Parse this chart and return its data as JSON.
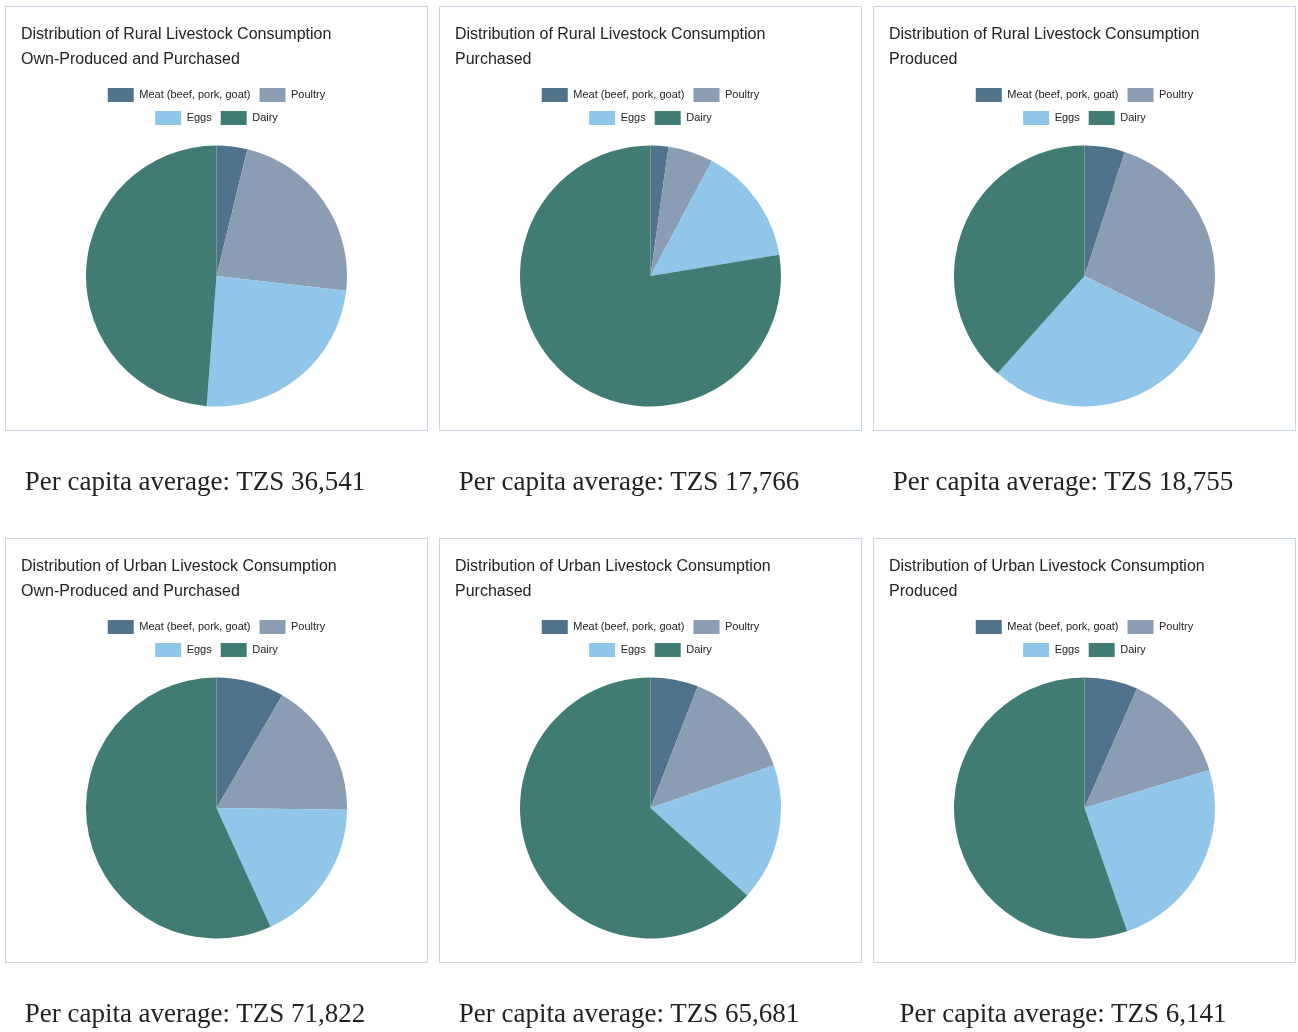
{
  "chart_data": [
    {
      "type": "pie",
      "title": "Distribution of Rural Livestock Consumption",
      "subtitle": "Own-Produced and Purchased",
      "categories": [
        "Meat (beef, pork, goat)",
        "Poultry",
        "Eggs",
        "Dairy"
      ],
      "values": [
        3.8,
        23,
        24.4,
        48.8
      ],
      "colors": [
        "#50728a",
        "#8a9db3",
        "#8fc6ea",
        "#417c74"
      ],
      "legend": "top",
      "annotations": [
        "Per capita average: TZS 36,541"
      ]
    },
    {
      "type": "pie",
      "title": "Distribution of Rural Livestock Consumption",
      "subtitle": "Purchased",
      "categories": [
        "Meat (beef, pork, goat)",
        "Poultry",
        "Eggs",
        "Dairy"
      ],
      "values": [
        2.2,
        5.6,
        14.6,
        77.6
      ],
      "colors": [
        "#50728a",
        "#8a9db3",
        "#8fc6ea",
        "#417c74"
      ],
      "legend": "top",
      "annotations": [
        "Per capita average: TZS 17,766"
      ]
    },
    {
      "type": "pie",
      "title": "Distribution of Rural Livestock Consumption",
      "subtitle": "Produced",
      "categories": [
        "Meat (beef, pork, goat)",
        "Poultry",
        "Eggs",
        "Dairy"
      ],
      "values": [
        5,
        27.3,
        29.3,
        38.4
      ],
      "colors": [
        "#50728a",
        "#8a9db3",
        "#8fc6ea",
        "#417c74"
      ],
      "legend": "top",
      "annotations": [
        "Per capita average: TZS 18,755"
      ]
    },
    {
      "type": "pie",
      "title": "Distribution of Urban Livestock Consumption",
      "subtitle": "Own-Produced and Purchased",
      "categories": [
        "Meat (beef, pork, goat)",
        "Poultry",
        "Eggs",
        "Dairy"
      ],
      "values": [
        8.4,
        16.8,
        18,
        56.8
      ],
      "colors": [
        "#50728a",
        "#8a9db3",
        "#8fc6ea",
        "#417c74"
      ],
      "legend": "top",
      "annotations": [
        "Per capita average: TZS 71,822"
      ]
    },
    {
      "type": "pie",
      "title": "Distribution of Urban Livestock Consumption",
      "subtitle": "Purchased",
      "categories": [
        "Meat (beef, pork, goat)",
        "Poultry",
        "Eggs",
        "Dairy"
      ],
      "values": [
        5.9,
        13.8,
        17,
        63.3
      ],
      "colors": [
        "#50728a",
        "#8a9db3",
        "#8fc6ea",
        "#417c74"
      ],
      "legend": "top",
      "annotations": [
        "Per capita average: TZS 65,681"
      ]
    },
    {
      "type": "pie",
      "title": "Distribution of Urban Livestock Consumption",
      "subtitle": "Produced",
      "categories": [
        "Meat (beef, pork, goat)",
        "Poultry",
        "Eggs",
        "Dairy"
      ],
      "values": [
        6.6,
        13.7,
        24.4,
        55.3
      ],
      "colors": [
        "#50728a",
        "#8a9db3",
        "#8fc6ea",
        "#417c74"
      ],
      "legend": "top",
      "annotations": [
        "Per capita average: TZS 6,141"
      ]
    }
  ]
}
